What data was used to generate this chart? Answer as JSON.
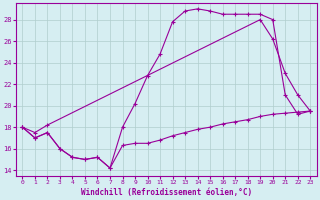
{
  "title": "",
  "xlabel": "Windchill (Refroidissement éolien,°C)",
  "ylabel": "",
  "xlim": [
    -0.5,
    23.5
  ],
  "ylim": [
    13.5,
    29.5
  ],
  "yticks": [
    14,
    16,
    18,
    20,
    22,
    24,
    26,
    28
  ],
  "xticks": [
    0,
    1,
    2,
    3,
    4,
    5,
    6,
    7,
    8,
    9,
    10,
    11,
    12,
    13,
    14,
    15,
    16,
    17,
    18,
    19,
    20,
    21,
    22,
    23
  ],
  "background_color": "#d6eef2",
  "grid_color": "#b0cece",
  "line_color": "#990099",
  "line1_x": [
    0,
    1,
    2,
    3,
    4,
    5,
    6,
    7,
    8,
    9,
    10,
    11,
    12,
    13,
    14,
    15,
    16,
    17,
    18,
    19,
    20,
    21,
    22,
    23
  ],
  "line1_y": [
    18,
    17,
    17.5,
    16,
    15.2,
    15.0,
    15.2,
    14.2,
    16.3,
    16.5,
    16.5,
    16.8,
    17.2,
    17.5,
    17.8,
    18.0,
    18.3,
    18.5,
    18.7,
    19.0,
    19.2,
    19.3,
    19.4,
    19.5
  ],
  "line2_x": [
    0,
    1,
    2,
    3,
    4,
    5,
    6,
    7,
    8,
    9,
    10,
    11,
    12,
    13,
    14,
    15,
    16,
    17,
    18,
    19,
    20,
    21,
    22,
    23
  ],
  "line2_y": [
    18,
    17,
    17.5,
    16,
    15.2,
    15.0,
    15.2,
    14.2,
    18.0,
    20.2,
    22.8,
    24.8,
    27.8,
    28.8,
    29.0,
    28.8,
    28.5,
    28.5,
    28.5,
    28.5,
    28.0,
    21.0,
    19.2,
    19.5
  ],
  "line3_x": [
    0,
    1,
    2,
    19,
    20,
    21,
    22,
    23
  ],
  "line3_y": [
    18,
    17.5,
    18.2,
    28.0,
    26.2,
    23.0,
    21.0,
    19.5
  ]
}
